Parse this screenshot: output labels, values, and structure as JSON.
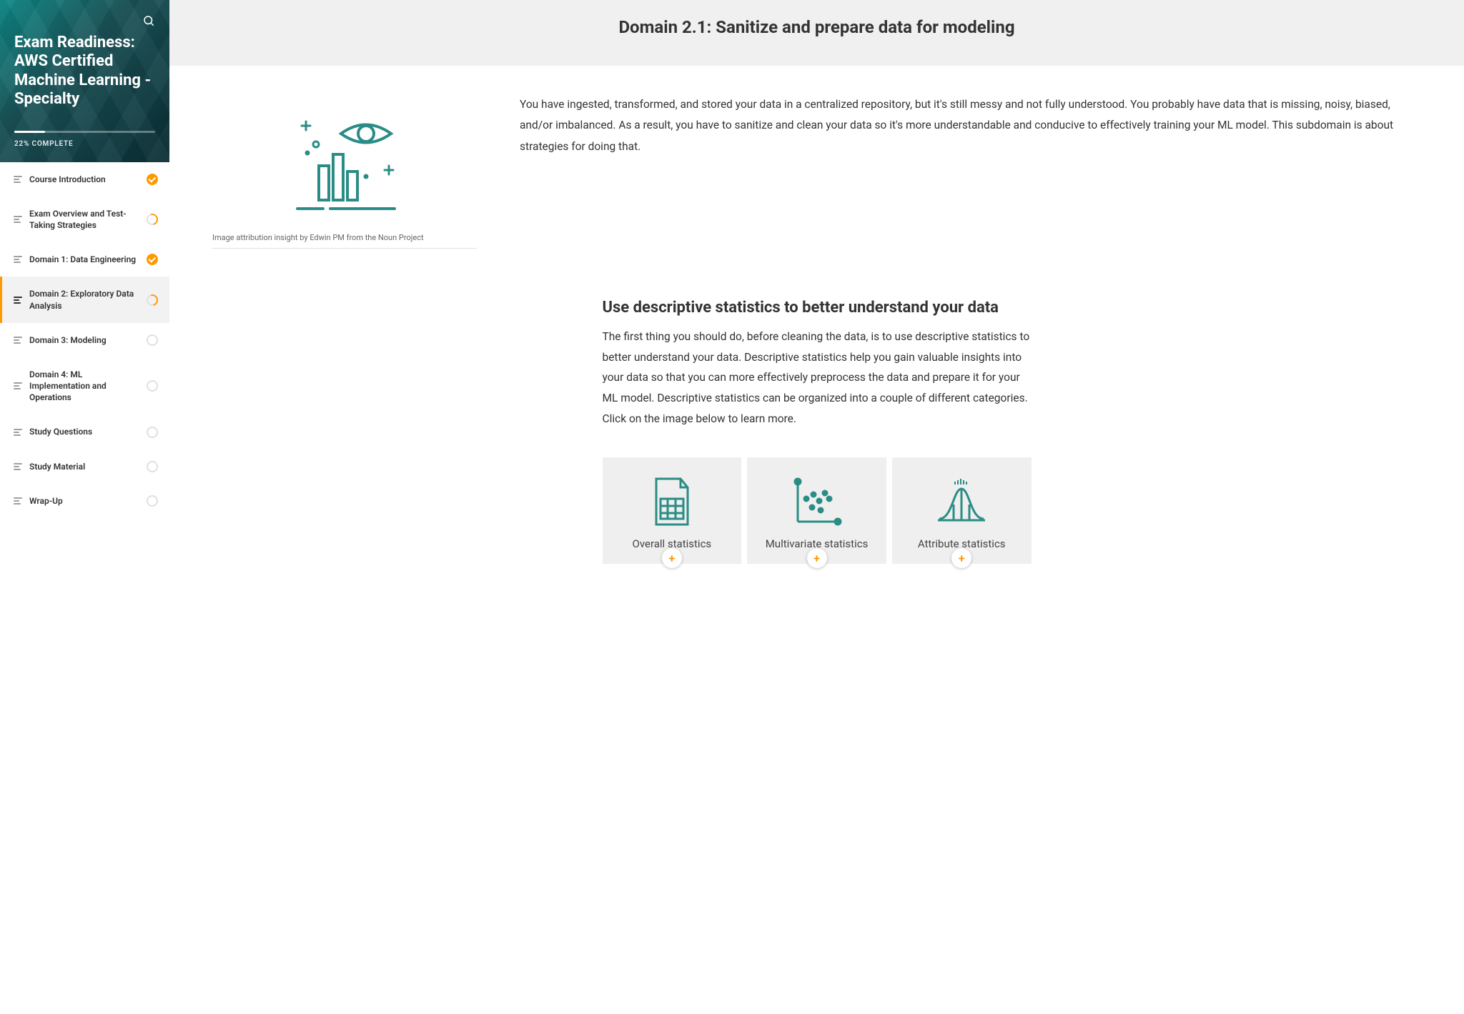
{
  "colors": {
    "accent": "#ff9900",
    "teal": "#2b8c86",
    "header_bg": "#f0f0f0",
    "card_bg": "#efefef",
    "sidebar_active_bg": "#f2f2f2",
    "text": "#333333",
    "muted": "#666666"
  },
  "sidebar": {
    "course_title": "Exam Readiness: AWS Certified Machine Learning - Specialty",
    "progress_percent": 22,
    "progress_label": "22% COMPLETE",
    "nav": [
      {
        "label": "Course Introduction",
        "status": "done",
        "active": false
      },
      {
        "label": "Exam Overview and Test-Taking Strategies",
        "status": "partial",
        "active": false
      },
      {
        "label": "Domain 1: Data Engineering",
        "status": "done",
        "active": false
      },
      {
        "label": "Domain 2: Exploratory Data Analysis",
        "status": "partial",
        "active": true
      },
      {
        "label": "Domain 3: Modeling",
        "status": "empty",
        "active": false
      },
      {
        "label": "Domain 4: ML Implementation and Operations",
        "status": "empty",
        "active": false
      },
      {
        "label": "Study Questions",
        "status": "empty",
        "active": false
      },
      {
        "label": "Study Material",
        "status": "empty",
        "active": false
      },
      {
        "label": "Wrap-Up",
        "status": "empty",
        "active": false
      }
    ]
  },
  "header": {
    "title": "Domain 2.1: Sanitize and prepare data for modeling"
  },
  "intro": {
    "figure": {
      "icon": "data-insight-illustration",
      "attribution": "Image attribution insight by Edwin PM from the Noun Project"
    },
    "text": "You have ingested, transformed, and stored your data in a centralized repository, but it's still messy and not fully understood. You probably have data that is missing, noisy, biased, and/or imbalanced. As a result, you have to sanitize and clean your data so it's more understandable and conducive to effectively training your ML model. This subdomain is about strategies for doing that."
  },
  "section": {
    "heading": "Use descriptive statistics to better understand your data",
    "body": "The first thing you should do, before cleaning the data, is to use descriptive statistics to better understand your data. Descriptive statistics help you gain valuable insights into your data so that you can more effectively preprocess the data and prepare it for your ML model. Descriptive statistics can be organized into a couple of different categories. Click on the image below to learn more."
  },
  "cards": [
    {
      "title": "Overall statistics",
      "icon": "spreadsheet-icon"
    },
    {
      "title": "Multivariate statistics",
      "icon": "scatter-icon"
    },
    {
      "title": "Attribute statistics",
      "icon": "bellcurve-icon"
    }
  ]
}
